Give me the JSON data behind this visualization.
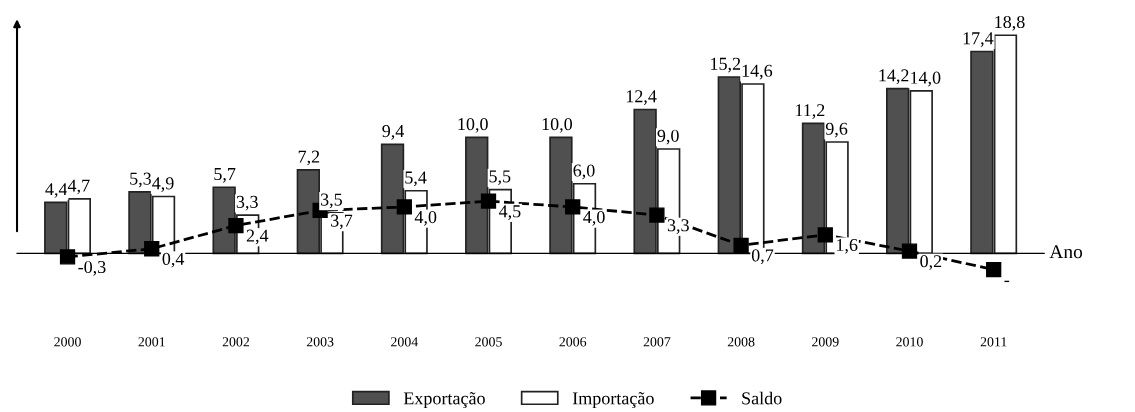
{
  "chart_data": {
    "type": "bar",
    "xlabel": "Ano",
    "categories": [
      "2000",
      "2001",
      "2002",
      "2003",
      "2004",
      "2005",
      "2006",
      "2007",
      "2008",
      "2009",
      "2010",
      "2011"
    ],
    "series": [
      {
        "name": "Exportação",
        "color": "#505050",
        "values": [
          4.4,
          5.3,
          5.7,
          7.2,
          9.4,
          10.0,
          10.0,
          12.4,
          15.2,
          11.2,
          14.2,
          17.4
        ],
        "value_labels": [
          "4,4",
          "5,3",
          "5,7",
          "7,2",
          "9,4",
          "10,0",
          "10,0",
          "12,4",
          "15,2",
          "11,2",
          "14,2",
          "17,4"
        ]
      },
      {
        "name": "Importação",
        "color": "#ffffff",
        "values": [
          4.7,
          4.9,
          3.3,
          3.5,
          5.4,
          5.5,
          6.0,
          9.0,
          14.6,
          9.6,
          14.0,
          18.8
        ],
        "value_labels": [
          "4,7",
          "4,9",
          "3,3",
          "3,5",
          "5,4",
          "5,5",
          "6,0",
          "9,0",
          "14,6",
          "9,6",
          "14,0",
          "18,8"
        ]
      },
      {
        "name": "Saldo",
        "type": "line",
        "color": "#000000",
        "line_style": "dashed",
        "marker": "square",
        "values": [
          -0.3,
          0.4,
          2.4,
          3.7,
          4.0,
          4.5,
          4.0,
          3.3,
          0.7,
          1.6,
          0.2,
          -1.4
        ],
        "value_labels": [
          "-0,3",
          "0,4",
          "2,4",
          "3,7",
          "4,0",
          "4,5",
          "4,0",
          "3,3",
          "0,7",
          "1,6",
          "0,2",
          "-"
        ]
      }
    ],
    "legend": "bottom",
    "grid": false,
    "tick_labels": "x"
  }
}
